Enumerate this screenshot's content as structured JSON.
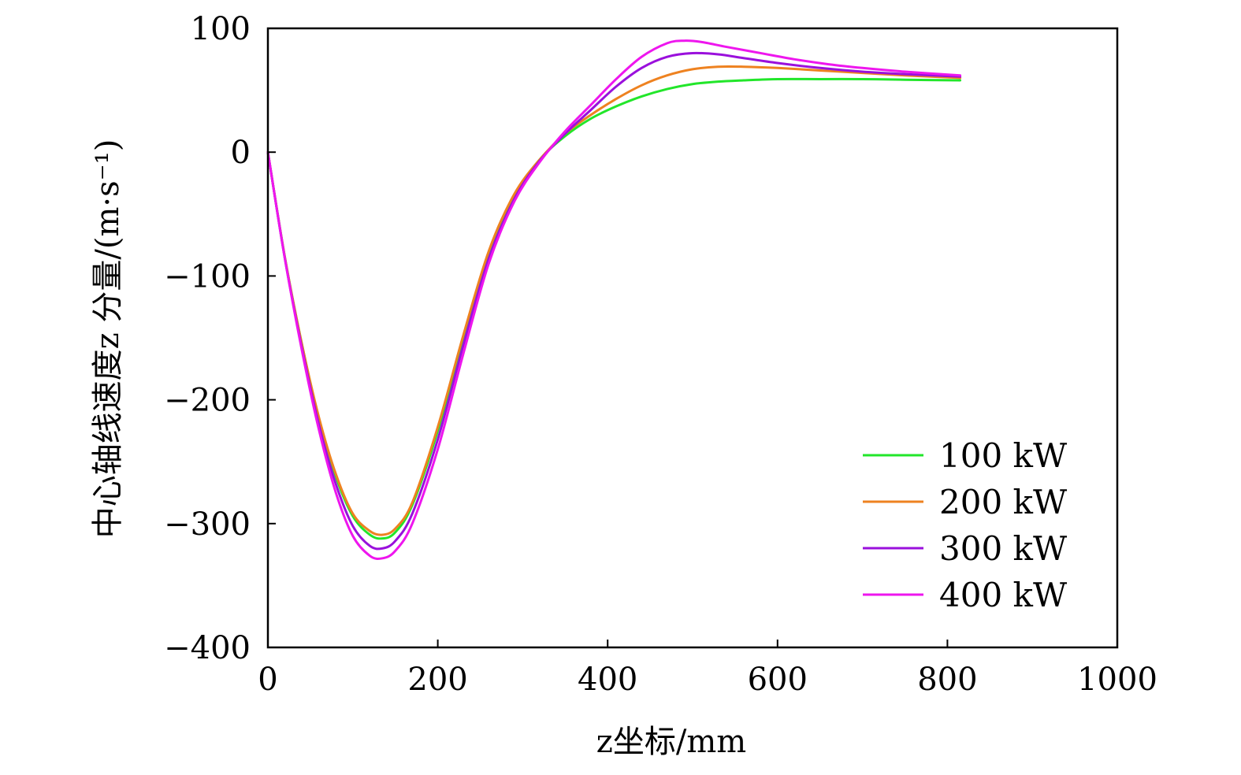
{
  "chart_data": {
    "type": "line",
    "title": "",
    "xlabel": "z坐标/mm",
    "ylabel": "中心轴线速度z 分量/(m·s⁻¹)",
    "xlim": [
      0,
      1000
    ],
    "ylim": [
      -400,
      100
    ],
    "x_ticks": [
      "0",
      "200",
      "400",
      "600",
      "800",
      "1000"
    ],
    "y_ticks": [
      "100",
      "0",
      "−100",
      "−200",
      "−300",
      "−400"
    ],
    "grid": false,
    "legend_position": "bottom-right",
    "series": [
      {
        "name": "100 kW",
        "color": "#22e62a",
        "x": [
          0,
          20,
          40,
          60,
          80,
          100,
          120,
          135,
          150,
          170,
          200,
          230,
          260,
          290,
          320,
          350,
          380,
          410,
          440,
          470,
          500,
          530,
          560,
          600,
          650,
          700,
          750,
          815
        ],
        "y": [
          0,
          -85,
          -155,
          -215,
          -262,
          -294,
          -309,
          -312,
          -307,
          -285,
          -225,
          -150,
          -82,
          -35,
          -6,
          13,
          27,
          37,
          45,
          51,
          55,
          57,
          58,
          59,
          59,
          59,
          58.5,
          58
        ]
      },
      {
        "name": "200 kW",
        "color": "#ee8220",
        "x": [
          0,
          20,
          40,
          60,
          80,
          100,
          120,
          135,
          150,
          170,
          200,
          230,
          260,
          290,
          320,
          350,
          380,
          410,
          440,
          470,
          500,
          530,
          560,
          600,
          650,
          700,
          750,
          815
        ],
        "y": [
          0,
          -85,
          -155,
          -214,
          -260,
          -292,
          -306,
          -309,
          -304,
          -283,
          -222,
          -148,
          -80,
          -34,
          -6,
          15,
          30,
          43,
          54,
          62,
          67,
          69,
          69,
          68,
          66,
          64,
          62,
          60
        ]
      },
      {
        "name": "300 kW",
        "color": "#9a10dc",
        "x": [
          0,
          20,
          40,
          60,
          80,
          100,
          120,
          135,
          150,
          170,
          200,
          230,
          260,
          290,
          320,
          350,
          380,
          410,
          440,
          470,
          500,
          530,
          560,
          600,
          650,
          700,
          750,
          815
        ],
        "y": [
          0,
          -86,
          -158,
          -220,
          -268,
          -302,
          -318,
          -320,
          -314,
          -292,
          -232,
          -156,
          -86,
          -38,
          -7,
          15,
          34,
          53,
          68,
          77,
          80,
          79,
          76,
          72,
          68,
          65,
          63,
          61
        ]
      },
      {
        "name": "400 kW",
        "color": "#ee16ee",
        "x": [
          0,
          20,
          40,
          60,
          80,
          100,
          120,
          135,
          150,
          170,
          200,
          230,
          260,
          290,
          320,
          350,
          380,
          410,
          440,
          470,
          490,
          510,
          540,
          580,
          620,
          660,
          700,
          750,
          815
        ],
        "y": [
          0,
          -86,
          -160,
          -224,
          -275,
          -310,
          -326,
          -328,
          -322,
          -300,
          -240,
          -163,
          -90,
          -40,
          -8,
          17,
          38,
          59,
          77,
          88,
          90,
          89,
          85,
          80,
          75,
          71,
          68,
          65,
          62
        ]
      }
    ]
  }
}
